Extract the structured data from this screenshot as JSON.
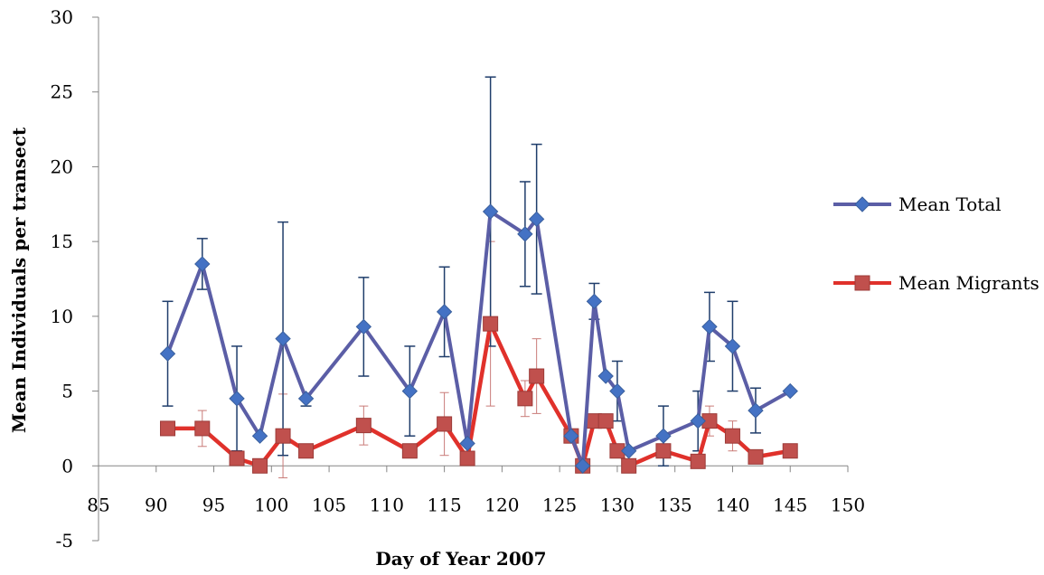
{
  "chart_data": {
    "type": "line",
    "title": "",
    "xlabel": "Day of Year 2007",
    "ylabel": "Mean Individuals per transect",
    "xlim": [
      85,
      150
    ],
    "ylim": [
      -5,
      30
    ],
    "xticks": [
      85,
      90,
      95,
      100,
      105,
      110,
      115,
      120,
      125,
      130,
      135,
      140,
      145,
      150
    ],
    "yticks": [
      -5,
      0,
      5,
      10,
      15,
      20,
      25,
      30
    ],
    "grid": false,
    "legend_position": "right",
    "series": [
      {
        "name": "Mean Total",
        "color": "#4472c4",
        "line_color": "#5b5ea6",
        "marker": "diamond",
        "x": [
          91,
          94,
          97,
          99,
          101,
          103,
          108,
          112,
          115,
          117,
          119,
          122,
          123,
          126,
          127,
          128,
          129,
          130,
          131,
          134,
          137,
          138,
          140,
          142,
          145
        ],
        "y": [
          7.5,
          13.5,
          4.5,
          2,
          8.5,
          4.5,
          9.3,
          5,
          10.3,
          1.5,
          17,
          15.5,
          16.5,
          2,
          0,
          11,
          6,
          5,
          1,
          2,
          3,
          9.3,
          8,
          3.7,
          5
        ],
        "err_low": [
          4,
          11.8,
          1,
          null,
          0.7,
          4,
          6,
          2,
          7.3,
          null,
          8,
          12,
          11.5,
          null,
          null,
          9.8,
          null,
          3,
          null,
          0,
          1,
          7,
          5,
          2.2,
          null
        ],
        "err_high": [
          11,
          15.2,
          8,
          null,
          16.3,
          4.5,
          12.6,
          8,
          13.3,
          null,
          26,
          19,
          21.5,
          null,
          null,
          12.2,
          null,
          7,
          null,
          4,
          5,
          11.6,
          11,
          5.2,
          null
        ]
      },
      {
        "name": "Mean Migrants",
        "color": "#c0504d",
        "line_color": "#e0312b",
        "marker": "square",
        "x": [
          91,
          94,
          97,
          99,
          101,
          103,
          108,
          112,
          115,
          117,
          119,
          122,
          123,
          126,
          127,
          128,
          129,
          130,
          131,
          134,
          137,
          138,
          140,
          142,
          145
        ],
        "y": [
          2.5,
          2.5,
          0.5,
          0,
          2,
          1,
          2.7,
          1,
          2.8,
          0.5,
          9.5,
          4.5,
          6,
          2,
          0,
          3,
          3,
          1,
          0,
          1,
          0.3,
          3,
          2,
          0.6,
          1
        ],
        "err_low": [
          null,
          1.3,
          null,
          null,
          -0.8,
          null,
          1.4,
          null,
          0.7,
          null,
          4,
          3.3,
          3.5,
          null,
          null,
          null,
          null,
          null,
          null,
          null,
          null,
          2,
          1,
          null,
          null
        ],
        "err_high": [
          null,
          3.7,
          null,
          null,
          4.8,
          null,
          4,
          null,
          4.9,
          null,
          15,
          5.7,
          8.5,
          null,
          null,
          null,
          null,
          null,
          null,
          null,
          null,
          4,
          3,
          null,
          null
        ]
      }
    ]
  }
}
